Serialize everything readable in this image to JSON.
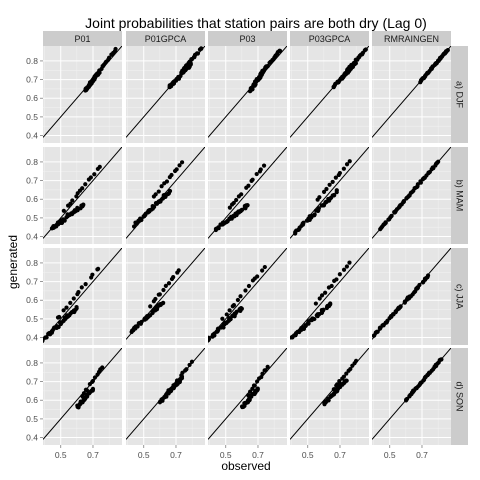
{
  "chart_data": {
    "type": "scatter",
    "title": "Joint probabilities that station pairs are both dry (Lag 0)",
    "xlabel": "observed",
    "ylabel": "generated",
    "columns": [
      "P01",
      "P01GPCA",
      "P03",
      "P03GPCA",
      "RMRAINGEN"
    ],
    "rows": [
      "a) DJF",
      "b) MAM",
      "c) JJA",
      "d) SON"
    ],
    "x_ticks": [
      "0.5",
      "0.7"
    ],
    "x_tick_values": [
      0.5,
      0.7
    ],
    "y_ticks": [
      "0.4",
      "0.5",
      "0.6",
      "0.7",
      "0.8"
    ],
    "y_tick_values": [
      0.4,
      0.5,
      0.6,
      0.7,
      0.8
    ],
    "xlim": [
      0.39,
      0.88
    ],
    "ylim": [
      0.36,
      0.88
    ],
    "reference_line": "y = x",
    "grid": true,
    "legend": "none",
    "panels": [
      [
        {
          "clusters": [
            {
              "x": [
                0.65,
                0.74
              ],
              "y": [
                0.64,
                0.74
              ],
              "n": 42,
              "spread": 0.012
            },
            {
              "x": [
                0.7,
                0.84
              ],
              "y": [
                0.7,
                0.86
              ],
              "n": 20,
              "spread": 0.008
            }
          ]
        },
        {
          "clusters": [
            {
              "x": [
                0.66,
                0.79
              ],
              "y": [
                0.66,
                0.78
              ],
              "n": 38,
              "spread": 0.01
            },
            {
              "x": [
                0.74,
                0.86
              ],
              "y": [
                0.75,
                0.87
              ],
              "n": 18,
              "spread": 0.007
            }
          ]
        },
        {
          "clusters": [
            {
              "x": [
                0.65,
                0.74
              ],
              "y": [
                0.64,
                0.75
              ],
              "n": 42,
              "spread": 0.012
            },
            {
              "x": [
                0.71,
                0.84
              ],
              "y": [
                0.72,
                0.86
              ],
              "n": 20,
              "spread": 0.008
            }
          ]
        },
        {
          "clusters": [
            {
              "x": [
                0.66,
                0.8
              ],
              "y": [
                0.66,
                0.79
              ],
              "n": 38,
              "spread": 0.01
            },
            {
              "x": [
                0.74,
                0.86
              ],
              "y": [
                0.75,
                0.86
              ],
              "n": 18,
              "spread": 0.007
            }
          ]
        },
        {
          "clusters": [
            {
              "x": [
                0.69,
                0.86
              ],
              "y": [
                0.69,
                0.86
              ],
              "n": 55,
              "spread": 0.006
            }
          ]
        }
      ],
      [
        {
          "clusters": [
            {
              "x": [
                0.44,
                0.64
              ],
              "y": [
                0.44,
                0.57
              ],
              "n": 42,
              "spread": 0.012
            },
            {
              "x": [
                0.52,
                0.74
              ],
              "y": [
                0.54,
                0.77
              ],
              "n": 14,
              "spread": 0.008
            }
          ]
        },
        {
          "clusters": [
            {
              "x": [
                0.44,
                0.66
              ],
              "y": [
                0.46,
                0.64
              ],
              "n": 48,
              "spread": 0.012
            },
            {
              "x": [
                0.56,
                0.74
              ],
              "y": [
                0.61,
                0.8
              ],
              "n": 12,
              "spread": 0.008
            }
          ]
        },
        {
          "clusters": [
            {
              "x": [
                0.44,
                0.64
              ],
              "y": [
                0.44,
                0.57
              ],
              "n": 42,
              "spread": 0.012
            },
            {
              "x": [
                0.52,
                0.74
              ],
              "y": [
                0.55,
                0.78
              ],
              "n": 14,
              "spread": 0.008
            }
          ]
        },
        {
          "clusters": [
            {
              "x": [
                0.42,
                0.68
              ],
              "y": [
                0.42,
                0.64
              ],
              "n": 48,
              "spread": 0.012
            },
            {
              "x": [
                0.56,
                0.76
              ],
              "y": [
                0.6,
                0.8
              ],
              "n": 12,
              "spread": 0.008
            }
          ]
        },
        {
          "clusters": [
            {
              "x": [
                0.44,
                0.8
              ],
              "y": [
                0.44,
                0.8
              ],
              "n": 60,
              "spread": 0.007
            }
          ]
        }
      ],
      [
        {
          "clusters": [
            {
              "x": [
                0.38,
                0.6
              ],
              "y": [
                0.38,
                0.56
              ],
              "n": 42,
              "spread": 0.013
            },
            {
              "x": [
                0.48,
                0.74
              ],
              "y": [
                0.5,
                0.78
              ],
              "n": 14,
              "spread": 0.008
            }
          ]
        },
        {
          "clusters": [
            {
              "x": [
                0.42,
                0.62
              ],
              "y": [
                0.43,
                0.59
              ],
              "n": 48,
              "spread": 0.012
            },
            {
              "x": [
                0.54,
                0.72
              ],
              "y": [
                0.57,
                0.76
              ],
              "n": 12,
              "spread": 0.008
            }
          ]
        },
        {
          "clusters": [
            {
              "x": [
                0.38,
                0.6
              ],
              "y": [
                0.38,
                0.56
              ],
              "n": 42,
              "spread": 0.013
            },
            {
              "x": [
                0.48,
                0.74
              ],
              "y": [
                0.5,
                0.78
              ],
              "n": 14,
              "spread": 0.008
            }
          ]
        },
        {
          "clusters": [
            {
              "x": [
                0.4,
                0.64
              ],
              "y": [
                0.4,
                0.58
              ],
              "n": 48,
              "spread": 0.012
            },
            {
              "x": [
                0.55,
                0.76
              ],
              "y": [
                0.58,
                0.8
              ],
              "n": 12,
              "spread": 0.008
            }
          ]
        },
        {
          "clusters": [
            {
              "x": [
                0.4,
                0.74
              ],
              "y": [
                0.41,
                0.73
              ],
              "n": 60,
              "spread": 0.008
            }
          ]
        }
      ],
      [
        {
          "clusters": [
            {
              "x": [
                0.6,
                0.7
              ],
              "y": [
                0.56,
                0.66
              ],
              "n": 32,
              "spread": 0.012
            },
            {
              "x": [
                0.63,
                0.76
              ],
              "y": [
                0.62,
                0.78
              ],
              "n": 12,
              "spread": 0.008
            }
          ]
        },
        {
          "clusters": [
            {
              "x": [
                0.6,
                0.74
              ],
              "y": [
                0.59,
                0.72
              ],
              "n": 36,
              "spread": 0.011
            },
            {
              "x": [
                0.64,
                0.8
              ],
              "y": [
                0.63,
                0.81
              ],
              "n": 12,
              "spread": 0.008
            }
          ]
        },
        {
          "clusters": [
            {
              "x": [
                0.6,
                0.7
              ],
              "y": [
                0.56,
                0.66
              ],
              "n": 32,
              "spread": 0.012
            },
            {
              "x": [
                0.64,
                0.76
              ],
              "y": [
                0.63,
                0.78
              ],
              "n": 12,
              "spread": 0.008
            }
          ]
        },
        {
          "clusters": [
            {
              "x": [
                0.6,
                0.74
              ],
              "y": [
                0.58,
                0.71
              ],
              "n": 36,
              "spread": 0.011
            },
            {
              "x": [
                0.66,
                0.8
              ],
              "y": [
                0.66,
                0.81
              ],
              "n": 12,
              "spread": 0.008
            }
          ]
        },
        {
          "clusters": [
            {
              "x": [
                0.6,
                0.82
              ],
              "y": [
                0.6,
                0.82
              ],
              "n": 45,
              "spread": 0.007
            }
          ]
        }
      ]
    ]
  }
}
